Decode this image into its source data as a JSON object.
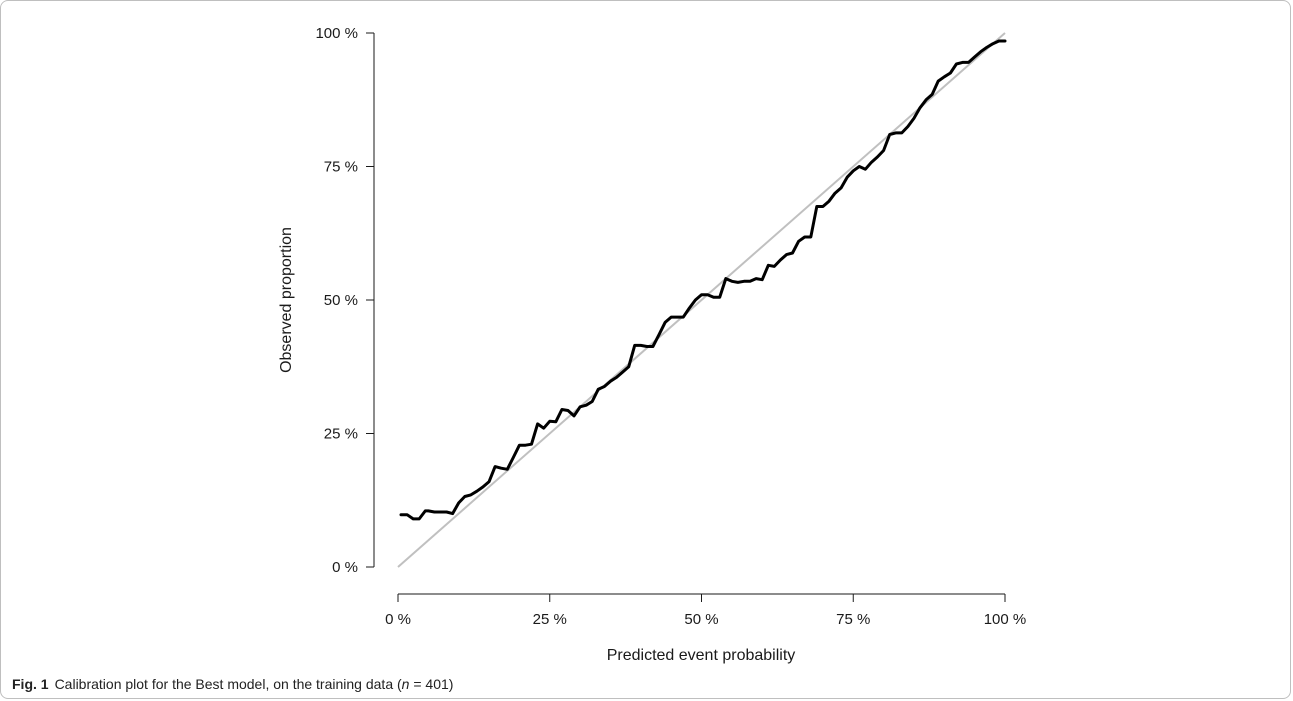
{
  "figure": {
    "label": "Fig. 1",
    "caption_main": "Calibration plot for the Best model, on the training data (",
    "caption_n": "n",
    "caption_eq": " = 401)"
  },
  "chart_data": {
    "type": "line",
    "title": "",
    "xlabel": "Predicted event probability",
    "ylabel": "Observed proportion",
    "xlim": [
      0,
      100
    ],
    "ylim": [
      0,
      100
    ],
    "x_ticks": [
      0,
      25,
      50,
      75,
      100
    ],
    "x_tick_labels": [
      "0 %",
      "25 %",
      "50 %",
      "75 %",
      "100 %"
    ],
    "y_ticks": [
      0,
      25,
      50,
      75,
      100
    ],
    "y_tick_labels": [
      "0 %",
      "25 %",
      "50 %",
      "75 %",
      "100 %"
    ],
    "grid": false,
    "reference_line": {
      "from": [
        0,
        0
      ],
      "to": [
        100,
        100
      ],
      "color": "#c0c0c0"
    },
    "series": [
      {
        "color": "#000000",
        "x": [
          0.5,
          1.5,
          2.5,
          3.5,
          4.5,
          5,
          6,
          7,
          8,
          9,
          10,
          11,
          12,
          13,
          14,
          15,
          16,
          17,
          18,
          19,
          20,
          21,
          22,
          23,
          24,
          25,
          26,
          27,
          28,
          29,
          30,
          31,
          32,
          33,
          34,
          35,
          36,
          37,
          38,
          39,
          40,
          41,
          42,
          43,
          44,
          45,
          46,
          47,
          48,
          49,
          50,
          51,
          52,
          53,
          54,
          55,
          56,
          57,
          58,
          59,
          60,
          61,
          62,
          63,
          64,
          65,
          66,
          67,
          68,
          69,
          70,
          71,
          72,
          73,
          74,
          75,
          76,
          77,
          78,
          79,
          80,
          81,
          82,
          83,
          84,
          85,
          86,
          87,
          88,
          89,
          90,
          91,
          92,
          93,
          94,
          95,
          96,
          97,
          98,
          99,
          100
        ],
        "y": [
          9.8,
          9.8,
          9,
          9,
          10.5,
          10.5,
          10.3,
          10.3,
          10.3,
          10,
          12,
          13.2,
          13.5,
          14.2,
          15,
          16,
          18.8,
          18.5,
          18.3,
          20.5,
          22.8,
          22.8,
          23,
          26.8,
          26,
          27.3,
          27.2,
          29.5,
          29.3,
          28.3,
          30,
          30.3,
          31,
          33.3,
          33.8,
          34.8,
          35.5,
          36.5,
          37.5,
          41.5,
          41.5,
          41.3,
          41.3,
          43.5,
          45.8,
          46.8,
          46.8,
          46.8,
          48.5,
          50,
          51,
          51,
          50.5,
          50.5,
          54,
          53.5,
          53.3,
          53.5,
          53.5,
          54,
          53.8,
          56.5,
          56.3,
          57.5,
          58.5,
          58.8,
          61,
          61.8,
          61.8,
          67.5,
          67.5,
          68.5,
          70,
          71,
          73,
          74.2,
          75,
          74.5,
          75.8,
          76.8,
          78,
          81,
          81.3,
          81.3,
          82.5,
          84,
          86,
          87.5,
          88.5,
          91,
          91.8,
          92.5,
          94.2,
          94.5,
          94.5,
          95.5,
          96.5,
          97.3,
          98,
          98.5,
          98.5
        ]
      }
    ]
  }
}
